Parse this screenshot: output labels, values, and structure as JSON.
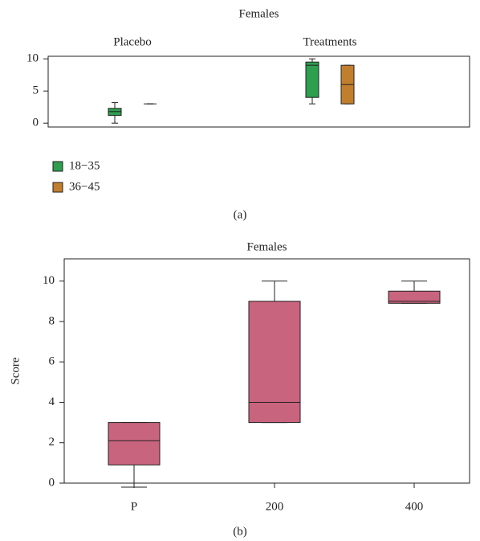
{
  "chart_data": [
    {
      "type": "box",
      "title": "Females",
      "caption": "(a)",
      "categories": [
        "Placebo",
        "Treatments"
      ],
      "series": [
        {
          "name": "18−35",
          "color": "#2e9e4f",
          "boxes": [
            {
              "min": 0,
              "q1": 1.2,
              "median": 1.8,
              "q3": 2.3,
              "max": 3.2
            },
            {
              "min": 3,
              "q1": 4,
              "median": 9,
              "q3": 9.5,
              "max": 10
            }
          ]
        },
        {
          "name": "36−45",
          "color": "#c17f2e",
          "boxes": [
            {
              "min": 3,
              "q1": 3,
              "median": 3,
              "q3": 3,
              "max": 3
            },
            {
              "min": 3,
              "q1": 3,
              "median": 6,
              "q3": 9,
              "max": 9
            }
          ]
        }
      ],
      "ylim": [
        -0.6,
        10.4
      ],
      "yticks": [
        0,
        5,
        10
      ],
      "legend": "bottom-left"
    },
    {
      "type": "box",
      "title": "Females",
      "caption": "(b)",
      "ylabel": "Score",
      "categories": [
        "P",
        "200",
        "400"
      ],
      "series": [
        {
          "color": "#c9647e",
          "boxes": [
            {
              "min": -0.2,
              "q1": 0.9,
              "median": 2.1,
              "q3": 3,
              "max": 3
            },
            {
              "min": 3,
              "q1": 3,
              "median": 4,
              "q3": 9,
              "max": 10
            },
            {
              "min": 8.9,
              "q1": 8.9,
              "median": 9,
              "q3": 9.5,
              "max": 10
            }
          ]
        }
      ],
      "ylim": [
        0,
        11.1
      ],
      "yticks": [
        0,
        2,
        4,
        6,
        8,
        10
      ]
    }
  ]
}
